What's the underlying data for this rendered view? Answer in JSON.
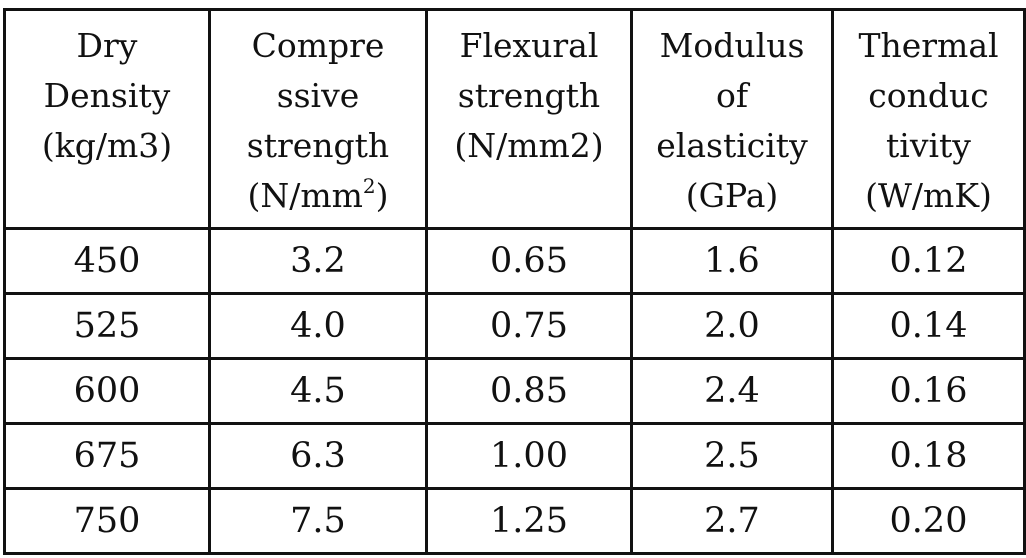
{
  "table": {
    "headers": [
      {
        "lines": [
          "Dry",
          "Density",
          "(kg/m3)"
        ]
      },
      {
        "lines": [
          "Compre",
          "ssive",
          "strength",
          "(N/mm"
        ],
        "sup": "2",
        "tail": ")"
      },
      {
        "lines": [
          "Flexural",
          "strength",
          "(N/mm2)"
        ]
      },
      {
        "lines": [
          "Modulus",
          "of",
          "elasticity",
          "(GPa)"
        ]
      },
      {
        "lines": [
          "Thermal",
          "conduc",
          "tivity",
          "(W/mK)"
        ]
      }
    ],
    "rows": [
      [
        "450",
        "3.2",
        "0.65",
        "1.6",
        "0.12"
      ],
      [
        "525",
        "4.0",
        "0.75",
        "2.0",
        "0.14"
      ],
      [
        "600",
        "4.5",
        "0.85",
        "2.4",
        "0.16"
      ],
      [
        "675",
        "6.3",
        "1.00",
        "2.5",
        "0.18"
      ],
      [
        "750",
        "7.5",
        "1.25",
        "2.7",
        "0.20"
      ]
    ]
  }
}
